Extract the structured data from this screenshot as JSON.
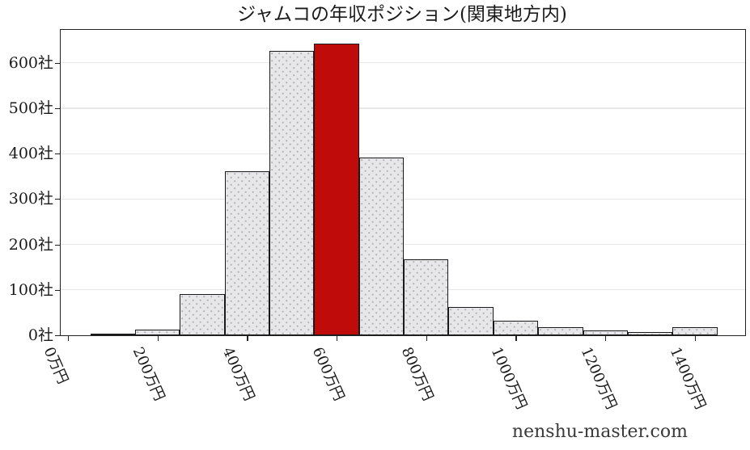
{
  "chart_data": {
    "type": "histogram",
    "title": "ジャムコの年収ポジション(関東地方内)",
    "watermark": "nenshu-master.com",
    "xlabel": "",
    "ylabel": "",
    "x_unit": "万円",
    "y_unit": "社",
    "bin_width_manen": 100,
    "xlim_manen": [
      -19,
      1511
    ],
    "ylim_companies": [
      0,
      675
    ],
    "grid": "horizontal-only",
    "legend": "none",
    "x_axis_ticks": [
      {
        "value": 0,
        "label": "0万円"
      },
      {
        "value": 200,
        "label": "200万円"
      },
      {
        "value": 400,
        "label": "400万円"
      },
      {
        "value": 600,
        "label": "600万円"
      },
      {
        "value": 800,
        "label": "800万円"
      },
      {
        "value": 1000,
        "label": "1000万円"
      },
      {
        "value": 1200,
        "label": "1200万円"
      },
      {
        "value": 1400,
        "label": "1400万円"
      }
    ],
    "y_axis_ticks": [
      {
        "value": 0,
        "label": "0社"
      },
      {
        "value": 100,
        "label": "100社"
      },
      {
        "value": 200,
        "label": "200社"
      },
      {
        "value": 300,
        "label": "300社"
      },
      {
        "value": 400,
        "label": "400社"
      },
      {
        "value": 500,
        "label": "500社"
      },
      {
        "value": 600,
        "label": "600社"
      }
    ],
    "bars": [
      {
        "income_manen": 100,
        "companies": 2,
        "highlighted": false
      },
      {
        "income_manen": 200,
        "companies": 12,
        "highlighted": false
      },
      {
        "income_manen": 300,
        "companies": 90,
        "highlighted": false
      },
      {
        "income_manen": 400,
        "companies": 361,
        "highlighted": false
      },
      {
        "income_manen": 500,
        "companies": 627,
        "highlighted": false
      },
      {
        "income_manen": 600,
        "companies": 642,
        "highlighted": true
      },
      {
        "income_manen": 700,
        "companies": 392,
        "highlighted": false
      },
      {
        "income_manen": 800,
        "companies": 167,
        "highlighted": false
      },
      {
        "income_manen": 900,
        "companies": 62,
        "highlighted": false
      },
      {
        "income_manen": 1000,
        "companies": 32,
        "highlighted": false
      },
      {
        "income_manen": 1100,
        "companies": 18,
        "highlighted": false
      },
      {
        "income_manen": 1200,
        "companies": 10,
        "highlighted": false
      },
      {
        "income_manen": 1300,
        "companies": 8,
        "highlighted": false
      },
      {
        "income_manen": 1400,
        "companies": 17,
        "highlighted": false
      }
    ],
    "highlight_income_manen": 600,
    "colors": {
      "bar_fill": "#e7e7e9",
      "bar_hatch_dot": "#b4b4b8",
      "bar_edge": "#1a1a1a",
      "highlight_bar": "#c00b0b",
      "grid": "#e7e7e7",
      "axis": "#222222",
      "text": "#1a1a1a",
      "watermark": "#3a3a3a"
    }
  }
}
